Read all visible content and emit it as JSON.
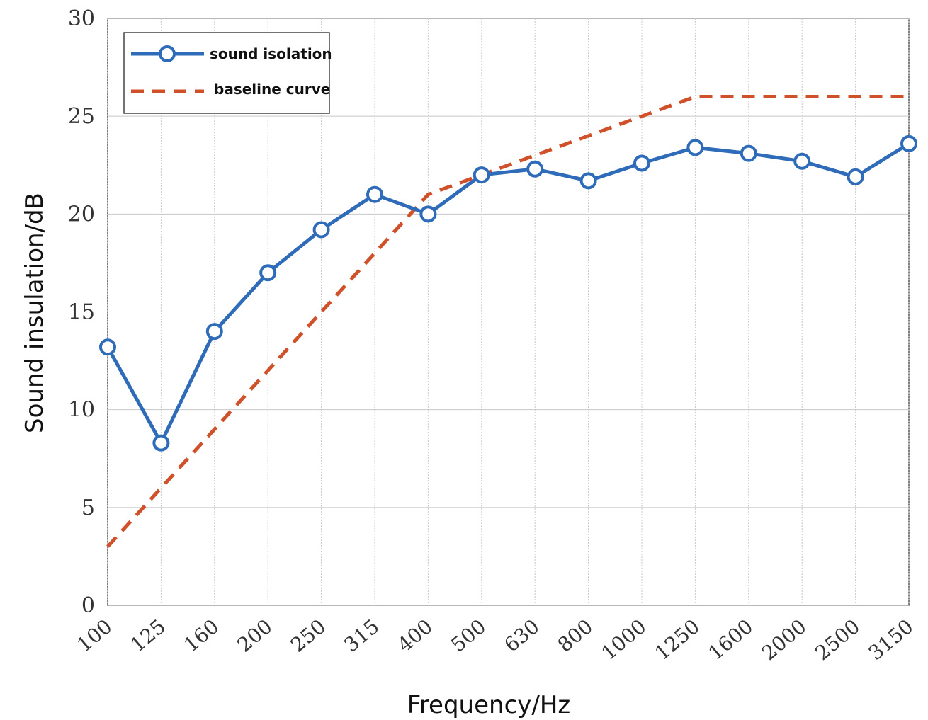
{
  "chart_data": {
    "type": "line",
    "title": "",
    "xlabel": "Frequency/Hz",
    "ylabel": "Sound insulation/dB",
    "ylim": [
      0,
      30
    ],
    "yticks": [
      0,
      5,
      10,
      15,
      20,
      25,
      30
    ],
    "categories": [
      "100",
      "125",
      "160",
      "200",
      "250",
      "315",
      "400",
      "500",
      "630",
      "800",
      "1000",
      "1250",
      "1600",
      "2000",
      "2500",
      "3150"
    ],
    "grid": true,
    "legend_position": "top-left",
    "series": [
      {
        "name": "sound isolation",
        "color": "#2e6bb8",
        "style": "solid",
        "marker": "circle",
        "values": [
          13.2,
          8.3,
          14.0,
          17.0,
          19.2,
          21.0,
          20.0,
          22.0,
          22.3,
          21.7,
          22.6,
          23.4,
          23.1,
          22.7,
          21.9,
          23.6
        ]
      },
      {
        "name": "baseline curve",
        "color": "#d0502a",
        "style": "dashed",
        "marker": "none",
        "values": [
          3.0,
          6.0,
          9.0,
          12.0,
          15.0,
          18.0,
          21.0,
          22.0,
          23.0,
          24.0,
          25.0,
          26.0,
          26.0,
          26.0,
          26.0,
          26.0
        ]
      }
    ]
  }
}
